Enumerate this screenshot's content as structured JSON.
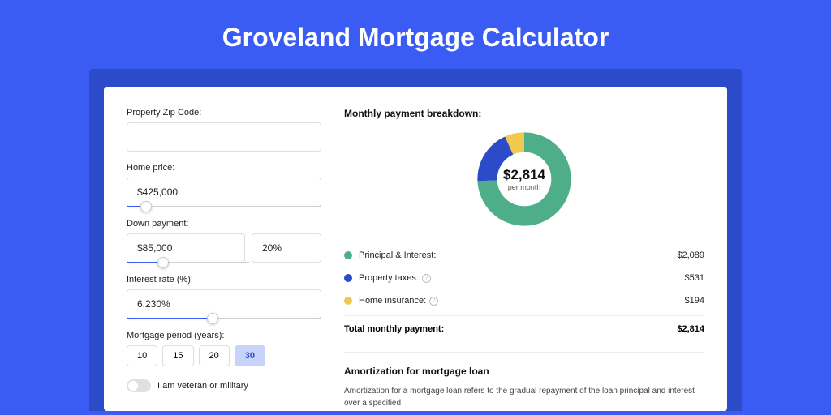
{
  "page": {
    "title": "Groveland Mortgage Calculator",
    "bg_color": "#3b5bf5",
    "band_color": "#2b4bc8"
  },
  "form": {
    "zip_label": "Property Zip Code:",
    "zip_value": "",
    "home_price_label": "Home price:",
    "home_price_value": "$425,000",
    "home_price_slider_pct": 10,
    "down_payment_label": "Down payment:",
    "down_payment_value": "$85,000",
    "down_payment_pct": "20%",
    "down_payment_slider_pct": 30,
    "interest_label": "Interest rate (%):",
    "interest_value": "6.230%",
    "interest_slider_pct": 44,
    "period_label": "Mortgage period (years):",
    "periods": [
      "10",
      "15",
      "20",
      "30"
    ],
    "period_active": "30",
    "veteran_label": "I am veteran or military"
  },
  "breakdown": {
    "title": "Monthly payment breakdown:",
    "donut": {
      "amount": "$2,814",
      "sub": "per month",
      "segments": [
        {
          "label": "Principal & Interest:",
          "value": "$2,089",
          "color": "#4fae8a",
          "fraction": 0.742
        },
        {
          "label": "Property taxes:",
          "value": "$531",
          "color": "#2b4bc8",
          "fraction": 0.189,
          "help": true
        },
        {
          "label": "Home insurance:",
          "value": "$194",
          "color": "#f2c94c",
          "fraction": 0.069,
          "help": true
        }
      ]
    },
    "total_label": "Total monthly payment:",
    "total_value": "$2,814"
  },
  "amort": {
    "title": "Amortization for mortgage loan",
    "body": "Amortization for a mortgage loan refers to the gradual repayment of the loan principal and interest over a specified"
  }
}
